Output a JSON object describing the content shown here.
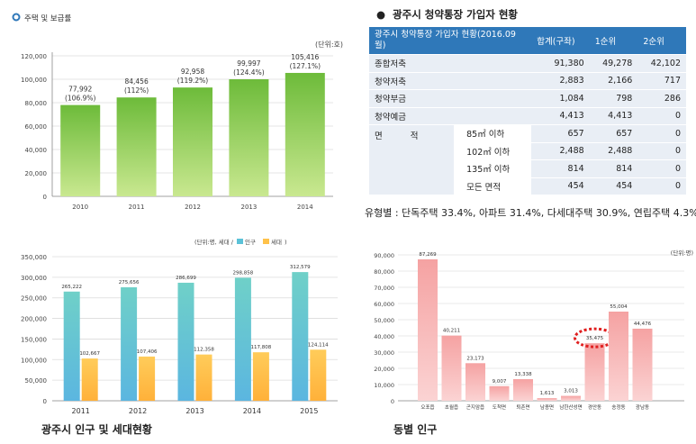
{
  "top_left": {
    "heading": "주택 및 보급률",
    "unit": "(단위:호)"
  },
  "top_right": {
    "heading": "광주시 청약통장 가입자 현황",
    "table": {
      "headers": [
        "광주시 청약통장 가입자 현황(2016.09월)",
        "합계(구좌)",
        "1순위",
        "2순위"
      ],
      "rows": [
        {
          "label": "종합저축",
          "sub": "",
          "total": "91,380",
          "r1": "49,278",
          "r2": "42,102"
        },
        {
          "label": "청약저축",
          "sub": "",
          "total": "2,883",
          "r1": "2,166",
          "r2": "717"
        },
        {
          "label": "청약부금",
          "sub": "",
          "total": "1,084",
          "r1": "798",
          "r2": "286"
        },
        {
          "label": "청약예금",
          "sub": "",
          "total": "4,413",
          "r1": "4,413",
          "r2": "0"
        },
        {
          "label": "면 적",
          "sub": "85㎡ 이하",
          "total": "657",
          "r1": "657",
          "r2": "0"
        },
        {
          "label": "",
          "sub": "102㎡ 이하",
          "total": "2,488",
          "r1": "2,488",
          "r2": "0"
        },
        {
          "label": "",
          "sub": "135㎡ 이하",
          "total": "814",
          "r1": "814",
          "r2": "0"
        },
        {
          "label": "",
          "sub": "모든 면적",
          "total": "454",
          "r1": "454",
          "r2": "0"
        }
      ]
    },
    "note": "유형별 : 단독주택 33.4%, 아파트 31.4%, 다세대주택 30.9%, 연립주택 4.3%"
  },
  "bottom_left": {
    "title": "광주시 인구 및 세대현황"
  },
  "bottom_right": {
    "title": "동별 인구"
  },
  "colors": {
    "green": "#8fcc52",
    "teal": "#6fc9c4",
    "orange": "#ffc24a",
    "pink": "#f5a9a9",
    "header_blue": "#2f78b9",
    "dotted_red": "#e02020"
  },
  "chart_data": [
    {
      "type": "bar",
      "title": "",
      "unit": "(단위:호)",
      "categories": [
        "2010",
        "2011",
        "2012",
        "2013",
        "2014"
      ],
      "values": [
        77992,
        84456,
        92958,
        99997,
        105416
      ],
      "value_labels": [
        "77,992",
        "84,456",
        "92,958",
        "99,997",
        "105,416"
      ],
      "secondary_labels": [
        "(106.9%)",
        "(112%)",
        "(119.2%)",
        "(124.4%)",
        "(127.1%)"
      ],
      "ylim": [
        0,
        120000
      ],
      "yticks": [
        "0",
        "20,000",
        "40,000",
        "60,000",
        "80,000",
        "100,000",
        "120,000"
      ],
      "grid": true
    },
    {
      "type": "bar",
      "title": "광주시 인구 및 세대현황",
      "unit": "(단위:명, 세대 /",
      "categories": [
        "2011",
        "2012",
        "2013",
        "2014",
        "2015"
      ],
      "series": [
        {
          "name": "인구",
          "values": [
            265222,
            275656,
            286699,
            298858,
            312579
          ],
          "labels": [
            "265,222",
            "275,656",
            "286,699",
            "298,858",
            "312,579"
          ]
        },
        {
          "name": "세대",
          "values": [
            102667,
            107406,
            112358,
            117808,
            124114
          ],
          "labels": [
            "102,667",
            "107,406",
            "112,358",
            "117,808",
            "124,114"
          ]
        }
      ],
      "ylim": [
        0,
        350000
      ],
      "yticks": [
        "0",
        "50,000",
        "100,000",
        "150,000",
        "200,000",
        "250,000",
        "300,000",
        "350,000"
      ],
      "legend": "top-right",
      "legend_close": ")",
      "grid": true
    },
    {
      "type": "bar",
      "title": "동별 인구",
      "unit": "(단위:명)",
      "categories": [
        "오포읍",
        "초월읍",
        "곤지암읍",
        "도척면",
        "퇴촌면",
        "남종면",
        "남한산성면",
        "경안동",
        "송정동",
        "광남동"
      ],
      "values": [
        87269,
        40211,
        23173,
        9007,
        13338,
        1613,
        3013,
        35475,
        55004,
        44476
      ],
      "value_labels": [
        "87,269",
        "40,211",
        "23,173",
        "9,007",
        "13,338",
        "1,613",
        "3,013",
        "35,475",
        "55,004",
        "44,476"
      ],
      "highlight": "경안동",
      "ylim": [
        0,
        90000
      ],
      "yticks": [
        "0",
        "10,000",
        "20,000",
        "30,000",
        "40,000",
        "50,000",
        "60,000",
        "70,000",
        "80,000",
        "90,000"
      ],
      "grid": true
    }
  ]
}
